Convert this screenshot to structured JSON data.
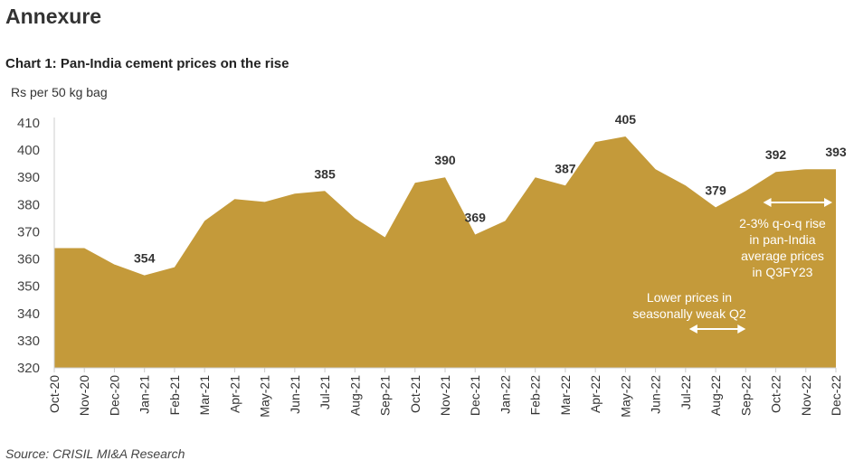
{
  "heading": "Annexure",
  "chart_data": {
    "type": "area",
    "title": "Chart 1: Pan-India cement prices on the rise",
    "ylabel": "Rs per 50 kg bag",
    "xlabel": "",
    "ylim": [
      320,
      410
    ],
    "yticks": [
      320,
      330,
      340,
      350,
      360,
      370,
      380,
      390,
      400,
      410
    ],
    "grid": false,
    "color": "#C49A3A",
    "categories": [
      "Oct-20",
      "Nov-20",
      "Dec-20",
      "Jan-21",
      "Feb-21",
      "Mar-21",
      "Apr-21",
      "May-21",
      "Jun-21",
      "Jul-21",
      "Aug-21",
      "Sep-21",
      "Oct-21",
      "Nov-21",
      "Dec-21",
      "Jan-22",
      "Feb-22",
      "Mar-22",
      "Apr-22",
      "May-22",
      "Jun-22",
      "Jul-22",
      "Aug-22",
      "Sep-22",
      "Oct-22",
      "Nov-22",
      "Dec-22"
    ],
    "values": [
      364,
      364,
      358,
      354,
      357,
      374,
      382,
      381,
      384,
      385,
      375,
      368,
      388,
      390,
      369,
      374,
      390,
      387,
      403,
      405,
      393,
      387,
      379,
      385,
      392,
      393,
      393
    ],
    "data_labels": [
      {
        "category": "Jan-21",
        "text": "354"
      },
      {
        "category": "Jul-21",
        "text": "385"
      },
      {
        "category": "Nov-21",
        "text": "390"
      },
      {
        "category": "Dec-21",
        "text": "369"
      },
      {
        "category": "Mar-22",
        "text": "387"
      },
      {
        "category": "May-22",
        "text": "405"
      },
      {
        "category": "Aug-22",
        "text": "379"
      },
      {
        "category": "Oct-22",
        "text": "392"
      },
      {
        "category": "Dec-22",
        "text": "393"
      }
    ],
    "annotations": [
      {
        "text": [
          "2-3% q-o-q rise",
          "in pan-India",
          "average prices",
          "in Q3FY23"
        ],
        "from": "Oct-22",
        "to": "Dec-22"
      },
      {
        "text": [
          "Lower prices in",
          "seasonally weak Q2"
        ],
        "from": "Jul-22",
        "to": "Sep-22"
      }
    ]
  },
  "source": "Source: CRISIL MI&A Research"
}
